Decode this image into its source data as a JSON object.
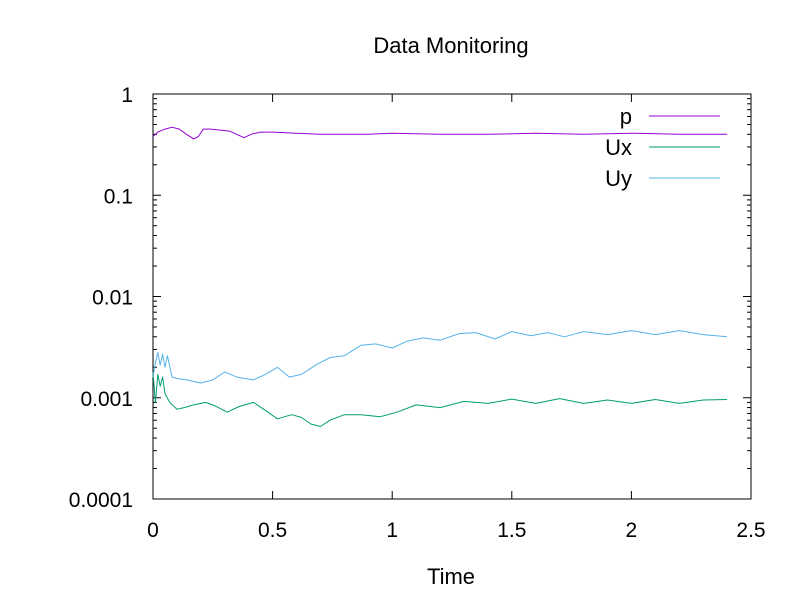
{
  "chart_data": {
    "type": "line",
    "title": "Data Monitoring",
    "xlabel": "Time",
    "ylabel": "",
    "xlim": [
      0,
      2.5
    ],
    "ylim": [
      0.0001,
      1
    ],
    "yscale": "log",
    "grid": false,
    "legend_position": "top-right",
    "x_ticks": [
      {
        "value": 0,
        "label": "0"
      },
      {
        "value": 0.5,
        "label": "0.5"
      },
      {
        "value": 1,
        "label": "1"
      },
      {
        "value": 1.5,
        "label": "1.5"
      },
      {
        "value": 2,
        "label": "2"
      },
      {
        "value": 2.5,
        "label": "2.5"
      }
    ],
    "y_ticks": [
      {
        "value": 0.0001,
        "label": "0.0001"
      },
      {
        "value": 0.001,
        "label": "0.001"
      },
      {
        "value": 0.01,
        "label": "0.01"
      },
      {
        "value": 0.1,
        "label": "0.1"
      },
      {
        "value": 1,
        "label": "1"
      }
    ],
    "series": [
      {
        "name": "p",
        "color": "#9400d3",
        "x": [
          0,
          0.02,
          0.05,
          0.08,
          0.11,
          0.14,
          0.17,
          0.19,
          0.21,
          0.24,
          0.28,
          0.32,
          0.35,
          0.38,
          0.41,
          0.45,
          0.5,
          0.6,
          0.7,
          0.8,
          0.9,
          1.0,
          1.2,
          1.4,
          1.6,
          1.8,
          2.0,
          2.2,
          2.4
        ],
        "y": [
          0.38,
          0.42,
          0.45,
          0.47,
          0.45,
          0.4,
          0.36,
          0.38,
          0.45,
          0.45,
          0.44,
          0.43,
          0.4,
          0.37,
          0.4,
          0.42,
          0.42,
          0.41,
          0.4,
          0.4,
          0.4,
          0.41,
          0.4,
          0.4,
          0.41,
          0.4,
          0.41,
          0.4,
          0.4
        ]
      },
      {
        "name": "Ux",
        "color": "#009e73",
        "x": [
          0,
          0.01,
          0.02,
          0.03,
          0.04,
          0.05,
          0.07,
          0.1,
          0.13,
          0.17,
          0.22,
          0.26,
          0.31,
          0.36,
          0.42,
          0.47,
          0.52,
          0.58,
          0.62,
          0.66,
          0.7,
          0.74,
          0.8,
          0.87,
          0.95,
          1.02,
          1.1,
          1.2,
          1.3,
          1.4,
          1.5,
          1.6,
          1.7,
          1.8,
          1.9,
          2.0,
          2.1,
          2.2,
          2.3,
          2.4
        ],
        "y": [
          0.0018,
          0.0009,
          0.0017,
          0.0013,
          0.0016,
          0.0011,
          0.0009,
          0.00077,
          0.0008,
          0.00085,
          0.0009,
          0.00083,
          0.00072,
          0.00082,
          0.0009,
          0.00075,
          0.00062,
          0.00068,
          0.00064,
          0.00055,
          0.00052,
          0.0006,
          0.00068,
          0.00068,
          0.00065,
          0.00072,
          0.00085,
          0.0008,
          0.00092,
          0.00088,
          0.00097,
          0.00088,
          0.00098,
          0.00088,
          0.00095,
          0.00088,
          0.00096,
          0.00088,
          0.00095,
          0.00096
        ]
      },
      {
        "name": "Uy",
        "color": "#56b4e9",
        "x": [
          0,
          0.01,
          0.02,
          0.03,
          0.04,
          0.05,
          0.06,
          0.08,
          0.1,
          0.14,
          0.2,
          0.25,
          0.3,
          0.35,
          0.42,
          0.47,
          0.52,
          0.57,
          0.62,
          0.68,
          0.74,
          0.8,
          0.87,
          0.93,
          1.0,
          1.06,
          1.13,
          1.2,
          1.28,
          1.35,
          1.43,
          1.5,
          1.58,
          1.65,
          1.72,
          1.8,
          1.9,
          2.0,
          2.1,
          2.2,
          2.3,
          2.4
        ],
        "y": [
          0.0016,
          0.0022,
          0.0028,
          0.0021,
          0.0027,
          0.002,
          0.0026,
          0.0016,
          0.00155,
          0.0015,
          0.0014,
          0.0015,
          0.0018,
          0.0016,
          0.0015,
          0.0017,
          0.002,
          0.0016,
          0.0017,
          0.0021,
          0.0025,
          0.0026,
          0.0033,
          0.0034,
          0.0031,
          0.0036,
          0.0039,
          0.0037,
          0.0043,
          0.0044,
          0.0038,
          0.0045,
          0.0041,
          0.0044,
          0.004,
          0.0045,
          0.0042,
          0.0046,
          0.0042,
          0.0046,
          0.0042,
          0.004
        ]
      }
    ]
  }
}
